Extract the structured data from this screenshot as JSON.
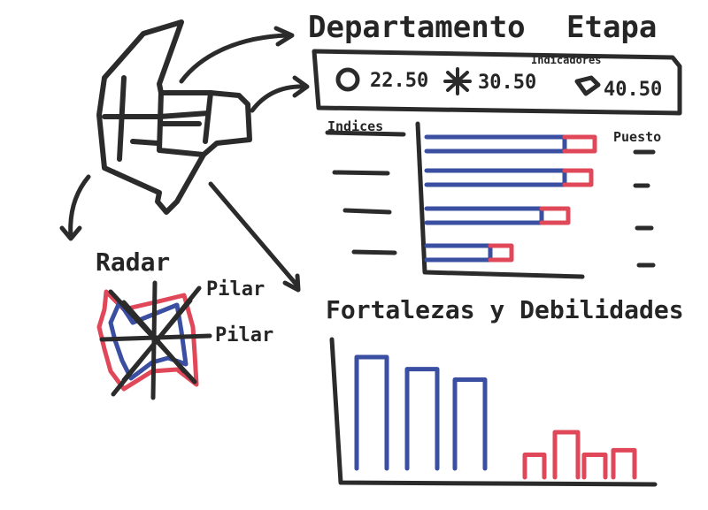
{
  "header": {
    "departamento": "Departamento",
    "etapa": "Etapa"
  },
  "indicadores": {
    "label": "Indicadores",
    "items": [
      {
        "shape": "circle",
        "value": "22.50"
      },
      {
        "shape": "star",
        "value": "30.50"
      },
      {
        "shape": "bowtie",
        "value": "40.50"
      }
    ]
  },
  "indices_chart": {
    "left_header": "Indices",
    "right_header": "Puesto",
    "colors": {
      "primary": "#3a4fa2",
      "secondary": "#e0485a"
    },
    "rows": [
      {
        "blue": 0.78,
        "red": 0.17
      },
      {
        "blue": 0.78,
        "red": 0.15
      },
      {
        "blue": 0.65,
        "red": 0.15
      },
      {
        "blue": 0.36,
        "red": 0.12
      }
    ]
  },
  "radar": {
    "title": "Radar",
    "labels": [
      "Pilar",
      "Pilar"
    ]
  },
  "fortalezas": {
    "title": "Fortalezas y Debilidades",
    "strengths": [
      0.8,
      0.72,
      0.65
    ],
    "weaknesses": [
      0.15,
      0.3,
      0.15,
      0.18
    ]
  }
}
